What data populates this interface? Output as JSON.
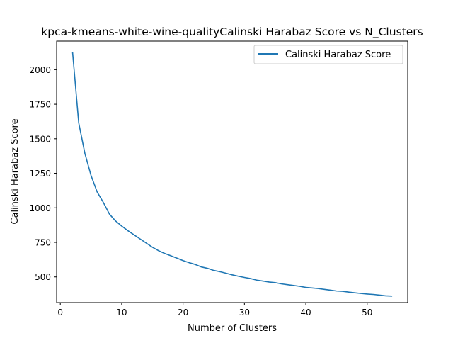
{
  "chart_data": {
    "type": "line",
    "title": "kpca-kmeans-white-wine-qualityCalinski Harabaz Score vs N_Clusters",
    "xlabel": "Number of Clusters",
    "ylabel": "Calinski Harabaz Score",
    "xlim": [
      -0.6,
      56.6
    ],
    "ylim": [
      314,
      2207
    ],
    "x_ticks": [
      0,
      10,
      20,
      30,
      40,
      50
    ],
    "y_ticks": [
      500,
      750,
      1000,
      1250,
      1500,
      1750,
      2000
    ],
    "grid": false,
    "legend_position": "top-right",
    "series": [
      {
        "name": "Calinski Harabaz Score",
        "color": "#1f77b4",
        "x": [
          2,
          3,
          4,
          5,
          6,
          7,
          8,
          9,
          10,
          11,
          12,
          13,
          14,
          15,
          16,
          17,
          18,
          19,
          20,
          21,
          22,
          23,
          24,
          25,
          26,
          27,
          28,
          29,
          30,
          31,
          32,
          33,
          34,
          35,
          36,
          37,
          38,
          39,
          40,
          41,
          42,
          43,
          44,
          45,
          46,
          47,
          48,
          49,
          50,
          51,
          52,
          53,
          54
        ],
        "y": [
          2125,
          1615,
          1395,
          1235,
          1115,
          1040,
          955,
          905,
          868,
          835,
          805,
          775,
          745,
          715,
          690,
          670,
          653,
          636,
          618,
          603,
          590,
          572,
          562,
          547,
          538,
          527,
          515,
          505,
          496,
          488,
          477,
          470,
          463,
          459,
          450,
          444,
          438,
          432,
          424,
          420,
          416,
          410,
          404,
          398,
          396,
          390,
          385,
          380,
          376,
          373,
          368,
          363,
          361
        ]
      }
    ]
  }
}
